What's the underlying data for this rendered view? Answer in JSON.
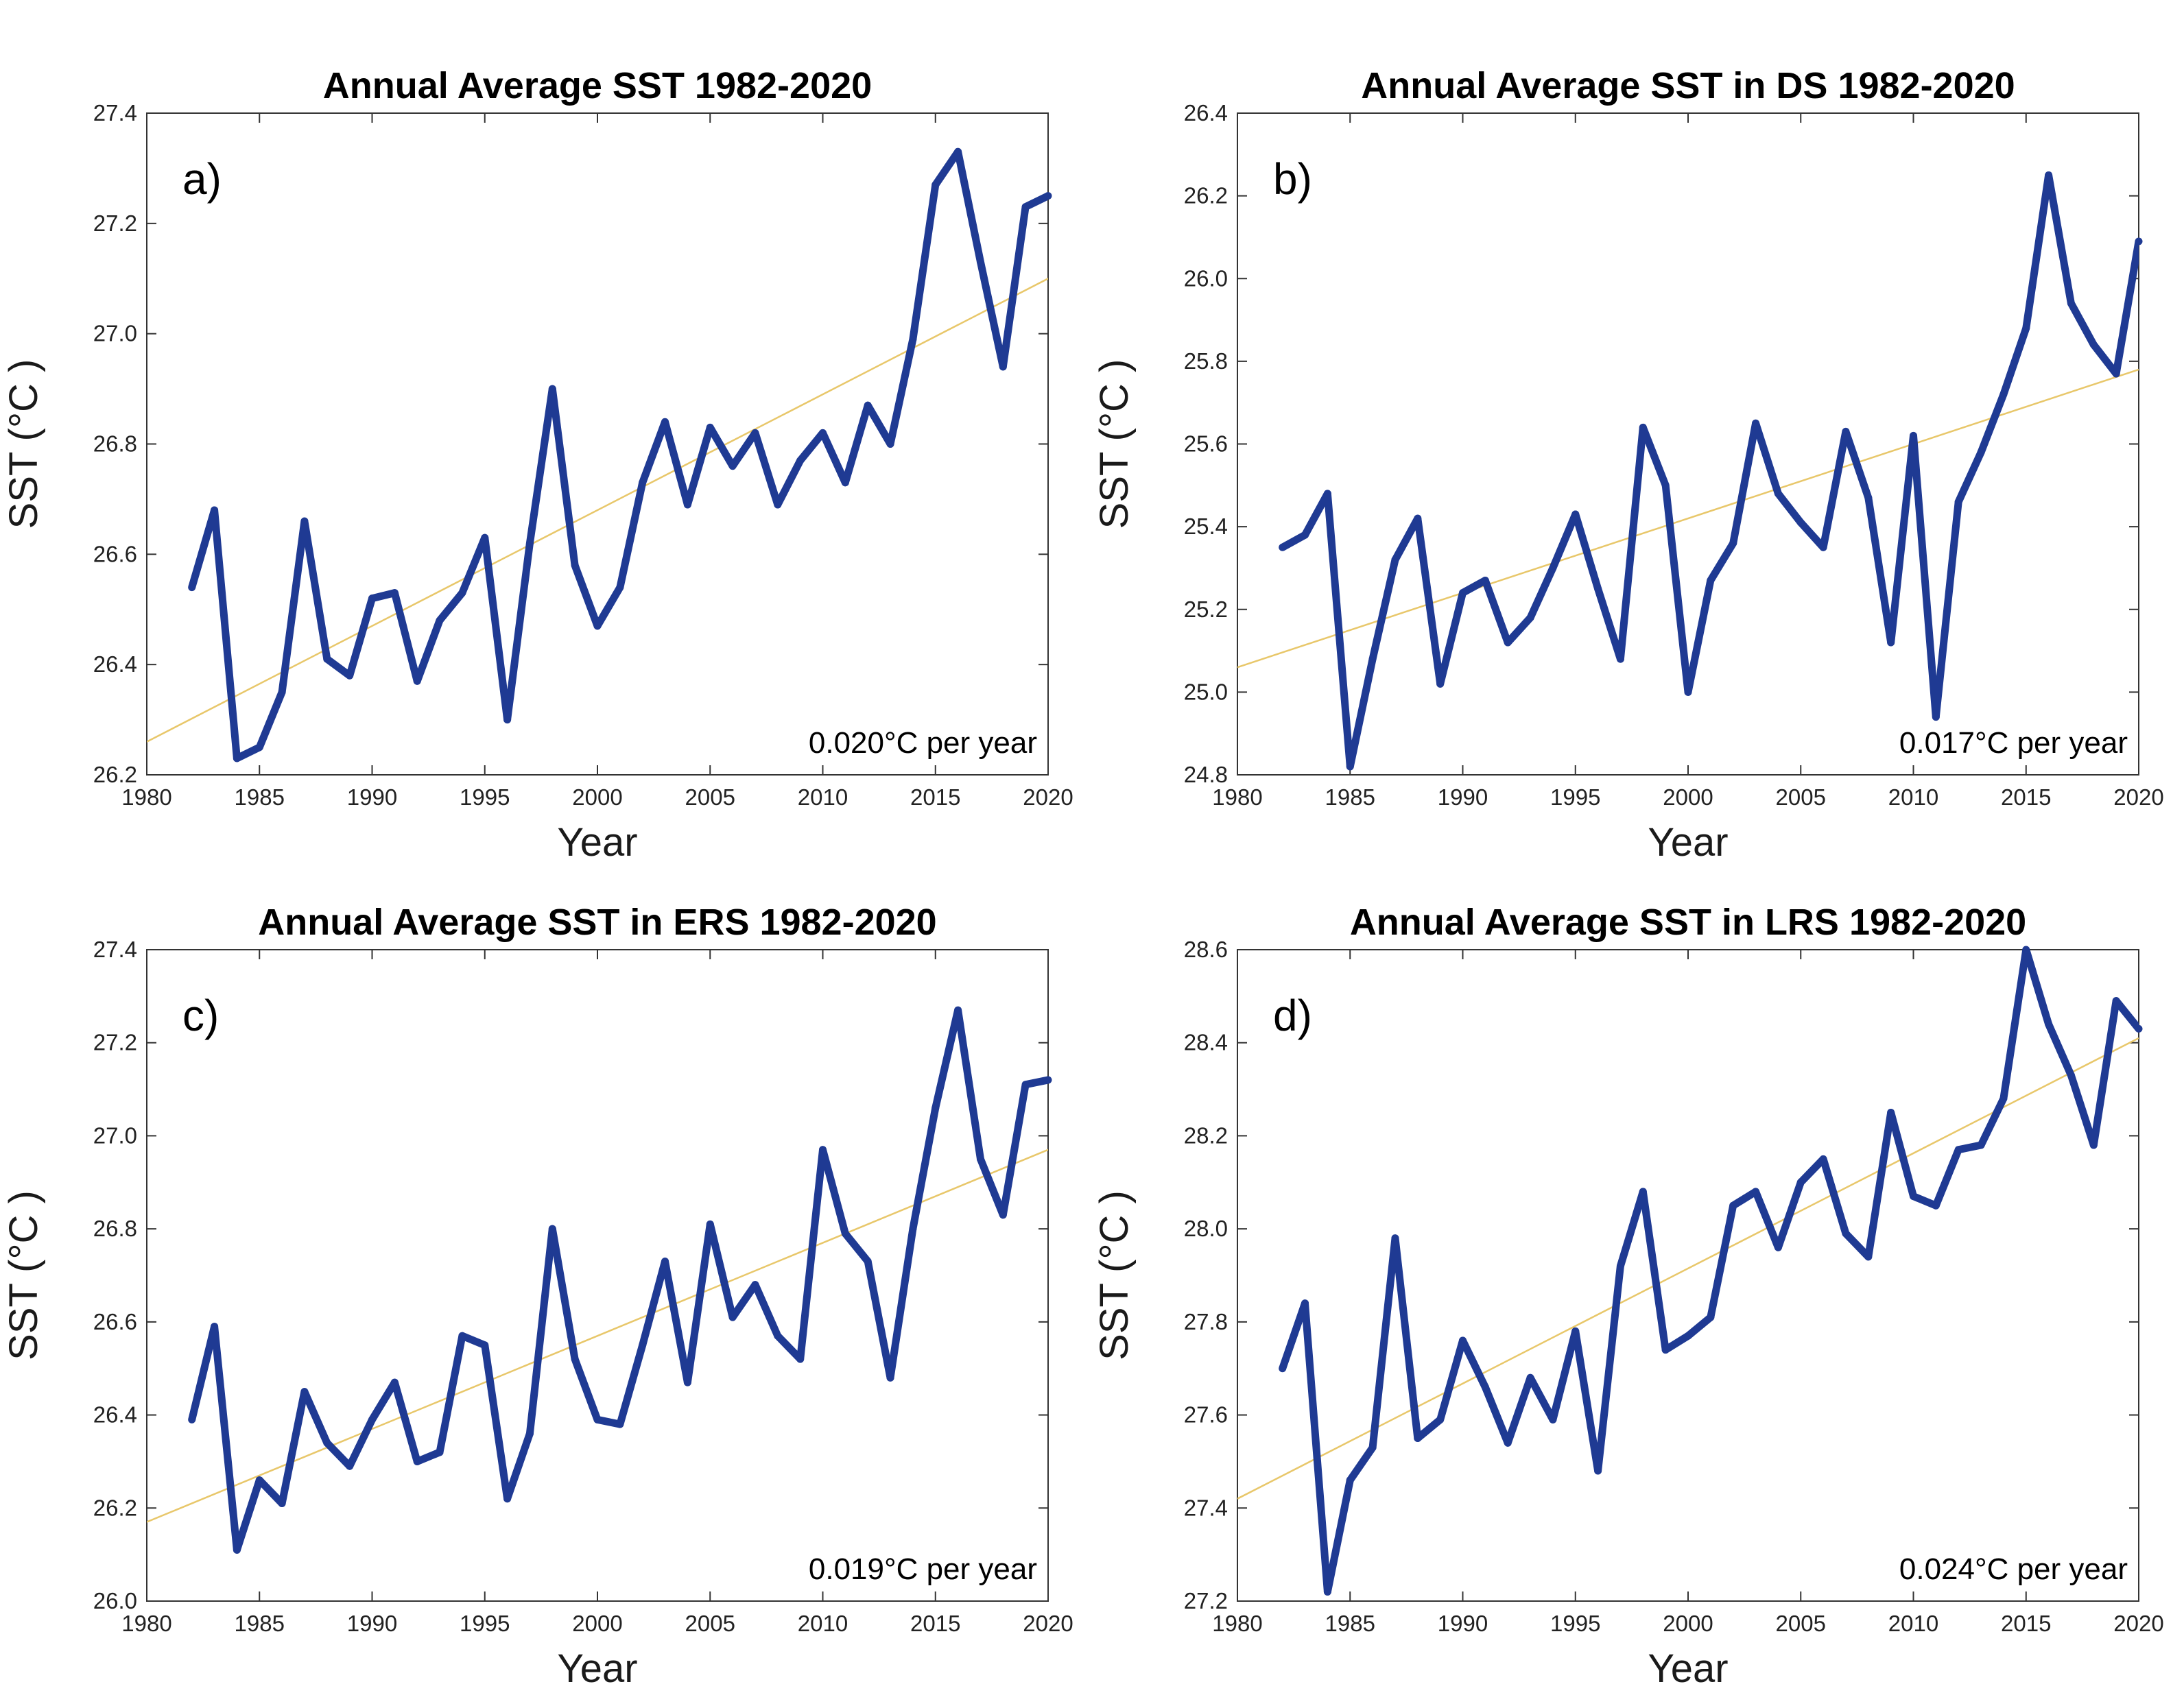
{
  "chart_data": [
    {
      "type": "line",
      "panel_label": "a)",
      "title": "Annual Average SST 1982-2020",
      "xlabel": "Year",
      "ylabel": "SST (°C )",
      "xlim": [
        1980,
        2020
      ],
      "ylim": [
        26.2,
        27.4
      ],
      "xticks": [
        "1980",
        "1985",
        "1990",
        "1995",
        "2000",
        "2005",
        "2010",
        "2015",
        "2020"
      ],
      "yticks": [
        "26.2",
        "26.4",
        "26.6",
        "26.8",
        "27.0",
        "27.2",
        "27.4"
      ],
      "x": [
        1982,
        1983,
        1984,
        1985,
        1986,
        1987,
        1988,
        1989,
        1990,
        1991,
        1992,
        1993,
        1994,
        1995,
        1996,
        1997,
        1998,
        1999,
        2000,
        2001,
        2002,
        2003,
        2004,
        2005,
        2006,
        2007,
        2008,
        2009,
        2010,
        2011,
        2012,
        2013,
        2014,
        2015,
        2016,
        2017,
        2018,
        2019,
        2020
      ],
      "series": [
        {
          "name": "Annual SST",
          "color": "#1f3a93",
          "values": [
            26.54,
            26.68,
            26.23,
            26.25,
            26.35,
            26.66,
            26.41,
            26.38,
            26.52,
            26.53,
            26.37,
            26.48,
            26.53,
            26.63,
            26.3,
            26.62,
            26.9,
            26.58,
            26.47,
            26.54,
            26.73,
            26.84,
            26.69,
            26.83,
            26.76,
            26.82,
            26.69,
            26.77,
            26.82,
            26.73,
            26.87,
            26.8,
            26.99,
            27.27,
            27.33,
            27.13,
            26.94,
            27.23,
            27.25
          ]
        },
        {
          "name": "Linear trend",
          "color": "#e8c76a",
          "values": [
            26.26,
            27.1
          ],
          "x": [
            1980,
            2020
          ]
        }
      ],
      "annotation": "0.020°C per year"
    },
    {
      "type": "line",
      "panel_label": "b)",
      "title": "Annual Average SST in DS 1982-2020",
      "xlabel": "Year",
      "ylabel": "SST (°C )",
      "xlim": [
        1980,
        2020
      ],
      "ylim": [
        24.8,
        26.4
      ],
      "xticks": [
        "1980",
        "1985",
        "1990",
        "1995",
        "2000",
        "2005",
        "2010",
        "2015",
        "2020"
      ],
      "yticks": [
        "24.8",
        "25.0",
        "25.2",
        "25.4",
        "25.6",
        "25.8",
        "26.0",
        "26.2",
        "26.4"
      ],
      "x": [
        1982,
        1983,
        1984,
        1985,
        1986,
        1987,
        1988,
        1989,
        1990,
        1991,
        1992,
        1993,
        1994,
        1995,
        1996,
        1997,
        1998,
        1999,
        2000,
        2001,
        2002,
        2003,
        2004,
        2005,
        2006,
        2007,
        2008,
        2009,
        2010,
        2011,
        2012,
        2013,
        2014,
        2015,
        2016,
        2017,
        2018,
        2019,
        2020
      ],
      "series": [
        {
          "name": "Annual SST",
          "color": "#1f3a93",
          "values": [
            25.35,
            25.38,
            25.48,
            24.82,
            25.08,
            25.32,
            25.42,
            25.02,
            25.24,
            25.27,
            25.12,
            25.18,
            25.3,
            25.43,
            25.25,
            25.08,
            25.64,
            25.5,
            25.0,
            25.27,
            25.36,
            25.65,
            25.48,
            25.41,
            25.35,
            25.63,
            25.47,
            25.12,
            25.62,
            24.94,
            25.46,
            25.58,
            25.72,
            25.88,
            26.25,
            25.94,
            25.84,
            25.77,
            26.09
          ]
        },
        {
          "name": "Linear trend",
          "color": "#e8c76a",
          "values": [
            25.06,
            25.78
          ],
          "x": [
            1980,
            2020
          ]
        }
      ],
      "annotation": "0.017°C per year"
    },
    {
      "type": "line",
      "panel_label": "c)",
      "title": "Annual Average SST in ERS 1982-2020",
      "xlabel": "Year",
      "ylabel": "SST (°C )",
      "xlim": [
        1980,
        2020
      ],
      "ylim": [
        26.0,
        27.4
      ],
      "xticks": [
        "1980",
        "1985",
        "1990",
        "1995",
        "2000",
        "2005",
        "2010",
        "2015",
        "2020"
      ],
      "yticks": [
        "26.0",
        "26.2",
        "26.4",
        "26.6",
        "26.8",
        "27.0",
        "27.2",
        "27.4"
      ],
      "x": [
        1982,
        1983,
        1984,
        1985,
        1986,
        1987,
        1988,
        1989,
        1990,
        1991,
        1992,
        1993,
        1994,
        1995,
        1996,
        1997,
        1998,
        1999,
        2000,
        2001,
        2002,
        2003,
        2004,
        2005,
        2006,
        2007,
        2008,
        2009,
        2010,
        2011,
        2012,
        2013,
        2014,
        2015,
        2016,
        2017,
        2018,
        2019,
        2020
      ],
      "series": [
        {
          "name": "Annual SST",
          "color": "#1f3a93",
          "values": [
            26.39,
            26.59,
            26.11,
            26.26,
            26.21,
            26.45,
            26.34,
            26.29,
            26.39,
            26.47,
            26.3,
            26.32,
            26.57,
            26.55,
            26.22,
            26.36,
            26.8,
            26.52,
            26.39,
            26.38,
            26.55,
            26.73,
            26.47,
            26.81,
            26.61,
            26.68,
            26.57,
            26.52,
            26.97,
            26.79,
            26.73,
            26.48,
            26.8,
            27.06,
            27.27,
            26.95,
            26.83,
            27.11,
            27.12
          ]
        },
        {
          "name": "Linear trend",
          "color": "#e8c76a",
          "values": [
            26.17,
            26.97
          ],
          "x": [
            1980,
            2020
          ]
        }
      ],
      "annotation": "0.019°C per year"
    },
    {
      "type": "line",
      "panel_label": "d)",
      "title": "Annual Average SST in LRS 1982-2020",
      "xlabel": "Year",
      "ylabel": "SST (°C )",
      "xlim": [
        1980,
        2020
      ],
      "ylim": [
        27.2,
        28.6
      ],
      "xticks": [
        "1980",
        "1985",
        "1990",
        "1995",
        "2000",
        "2005",
        "2010",
        "2015",
        "2020"
      ],
      "yticks": [
        "27.2",
        "27.4",
        "27.6",
        "27.8",
        "28.0",
        "28.2",
        "28.4",
        "28.6"
      ],
      "x": [
        1982,
        1983,
        1984,
        1985,
        1986,
        1987,
        1988,
        1989,
        1990,
        1991,
        1992,
        1993,
        1994,
        1995,
        1996,
        1997,
        1998,
        1999,
        2000,
        2001,
        2002,
        2003,
        2004,
        2005,
        2006,
        2007,
        2008,
        2009,
        2010,
        2011,
        2012,
        2013,
        2014,
        2015,
        2016,
        2017,
        2018,
        2019,
        2020
      ],
      "series": [
        {
          "name": "Annual SST",
          "color": "#1f3a93",
          "values": [
            27.7,
            27.84,
            27.22,
            27.46,
            27.53,
            27.98,
            27.55,
            27.59,
            27.76,
            27.66,
            27.54,
            27.68,
            27.59,
            27.78,
            27.48,
            27.92,
            28.08,
            27.74,
            27.77,
            27.81,
            28.05,
            28.08,
            27.96,
            28.1,
            28.15,
            27.99,
            27.94,
            28.25,
            28.07,
            28.05,
            28.17,
            28.18,
            28.28,
            28.6,
            28.44,
            28.33,
            28.18,
            28.49,
            28.43
          ]
        },
        {
          "name": "Linear trend",
          "color": "#e8c76a",
          "values": [
            27.42,
            28.41
          ],
          "x": [
            1980,
            2020
          ]
        }
      ],
      "annotation": "0.024°C per year"
    }
  ]
}
